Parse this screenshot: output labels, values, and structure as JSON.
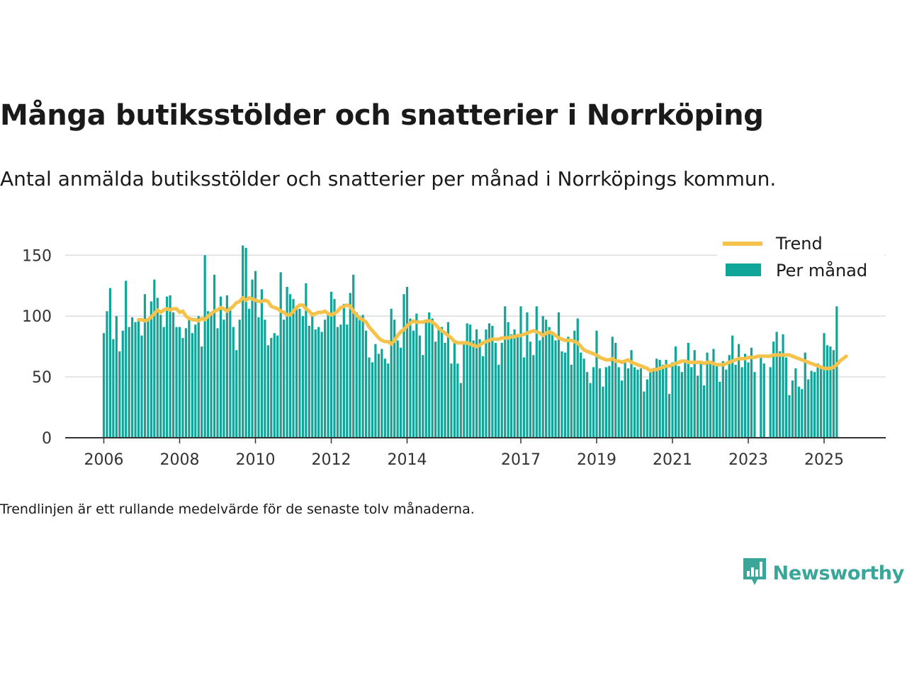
{
  "header": {
    "title": "Många butiksstölder och snatterier i Norrköping",
    "subtitle": "Antal anmälda butiksstölder och snatterier per månad i Norrköpings kommun."
  },
  "footnote": "Trendlinjen är ett rullande medelvärde för de senaste tolv månaderna.",
  "brand": {
    "name": "Newsworthy",
    "icon": "newsworthy-logo-icon"
  },
  "colors": {
    "bars": "#0fa598",
    "trend": "#f5c24c",
    "grid": "#dddddd",
    "axis": "#333333"
  },
  "chart_data": {
    "type": "bar",
    "start": "2006-01",
    "x_ticks": [
      "2006",
      "2008",
      "2010",
      "2012",
      "2014",
      "2017",
      "2019",
      "2021",
      "2023",
      "2025"
    ],
    "y_ticks": [
      0,
      50,
      100,
      150
    ],
    "ylim": [
      0,
      165
    ],
    "legend": {
      "placement": "top-right",
      "entries": [
        "Trend",
        "Per månad"
      ]
    },
    "grid": true,
    "series": [
      {
        "name": "Per månad",
        "type": "bar",
        "values": [
          86,
          104,
          123,
          81,
          100,
          71,
          88,
          129,
          91,
          99,
          95,
          97,
          84,
          118,
          97,
          112,
          130,
          115,
          101,
          91,
          116,
          117,
          103,
          91,
          91,
          82,
          90,
          99,
          86,
          93,
          100,
          75,
          150,
          104,
          103,
          134,
          90,
          116,
          97,
          117,
          107,
          91,
          72,
          97,
          158,
          156,
          106,
          130,
          137,
          99,
          122,
          97,
          76,
          82,
          86,
          84,
          136,
          97,
          124,
          118,
          114,
          107,
          106,
          100,
          127,
          92,
          103,
          89,
          91,
          87,
          97,
          103,
          120,
          114,
          91,
          93,
          110,
          93,
          119,
          134,
          103,
          100,
          101,
          88,
          66,
          62,
          77,
          69,
          73,
          65,
          61,
          106,
          97,
          80,
          74,
          118,
          124,
          98,
          88,
          102,
          84,
          68,
          96,
          103,
          98,
          79,
          90,
          91,
          78,
          95,
          61,
          80,
          61,
          45,
          78,
          94,
          93,
          80,
          89,
          81,
          67,
          89,
          94,
          92,
          78,
          60,
          78,
          108,
          95,
          85,
          89,
          84,
          108,
          66,
          103,
          79,
          68,
          108,
          80,
          100,
          97,
          91,
          85,
          80,
          103,
          71,
          70,
          83,
          60,
          88,
          98,
          70,
          65,
          54,
          45,
          58,
          88,
          57,
          42,
          58,
          59,
          83,
          78,
          58,
          47,
          62,
          57,
          72,
          58,
          56,
          57,
          38,
          48,
          55,
          57,
          65,
          64,
          60,
          64,
          36,
          62,
          75,
          59,
          54,
          64,
          78,
          58,
          72,
          51,
          63,
          43,
          70,
          62,
          73,
          61,
          46,
          63,
          56,
          68,
          84,
          60,
          77,
          58,
          69,
          62,
          74,
          54,
          0,
          67,
          61,
          0,
          58,
          79,
          87,
          71,
          85,
          66,
          35,
          47,
          57,
          42,
          40,
          70,
          48,
          55,
          54,
          61,
          57,
          86,
          76,
          75,
          72,
          108
        ]
      },
      {
        "name": "Trend",
        "type": "line",
        "start_index": 11,
        "values": [
          97,
          97,
          96,
          97,
          99,
          102,
          105,
          103,
          105,
          106,
          105,
          106,
          106,
          103,
          104,
          100,
          98,
          97,
          97,
          96,
          98,
          97,
          100,
          102,
          104,
          105,
          107,
          106,
          104,
          106,
          108,
          111,
          112,
          115,
          113,
          115,
          114,
          113,
          112,
          112,
          113,
          112,
          108,
          107,
          106,
          104,
          103,
          101,
          101,
          104,
          107,
          109,
          109,
          106,
          104,
          101,
          102,
          103,
          103,
          104,
          102,
          101,
          102,
          104,
          107,
          108,
          109,
          108,
          104,
          101,
          98,
          97,
          95,
          91,
          88,
          85,
          82,
          80,
          79,
          79,
          77,
          80,
          84,
          87,
          89,
          92,
          94,
          96,
          95,
          95,
          95,
          96,
          96,
          95,
          93,
          90,
          88,
          86,
          84,
          82,
          79,
          78,
          78,
          78,
          78,
          77,
          76,
          75,
          76,
          78,
          79,
          80,
          81,
          81,
          81,
          82,
          82,
          82,
          83,
          83,
          84,
          84,
          85,
          86,
          87,
          88,
          87,
          86,
          84,
          86,
          87,
          86,
          84,
          82,
          81,
          80,
          80,
          80,
          79,
          78,
          75,
          72,
          71,
          70,
          69,
          68,
          66,
          65,
          64,
          64,
          65,
          63,
          63,
          62,
          63,
          64,
          62,
          61,
          60,
          59,
          58,
          57,
          55,
          56,
          56,
          57,
          58,
          59,
          59,
          60,
          61,
          62,
          63,
          63,
          62,
          62,
          62,
          62,
          62,
          61,
          62,
          62,
          61,
          60,
          60,
          60,
          61,
          62,
          63,
          64,
          65,
          65,
          65,
          66,
          66,
          66,
          67,
          67,
          67,
          67,
          67,
          68,
          68,
          68,
          68,
          68,
          68,
          67,
          66,
          65,
          64,
          63,
          62,
          61,
          60,
          59,
          58,
          57,
          57,
          57,
          58,
          60,
          63,
          65,
          67
        ]
      }
    ]
  }
}
